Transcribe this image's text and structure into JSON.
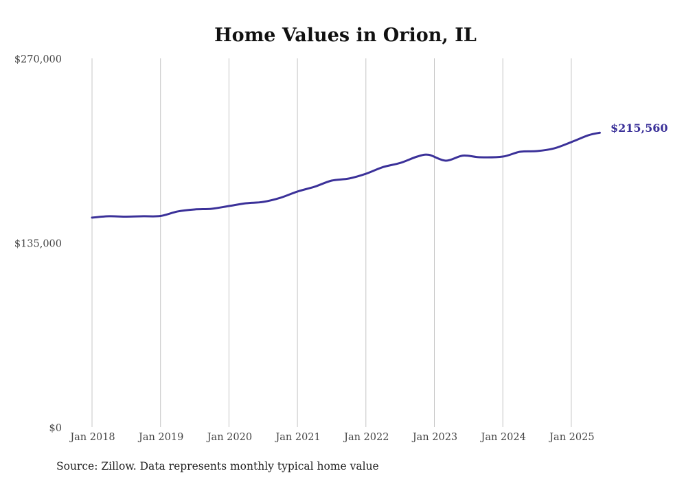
{
  "chart_data": {
    "type": "line",
    "title": "Home Values in Orion, IL",
    "xlabel": "",
    "ylabel": "",
    "ylim": [
      0,
      270000
    ],
    "y_ticks": [
      0,
      135000,
      270000
    ],
    "y_tick_labels": [
      "$0",
      "$135,000",
      "$270,000"
    ],
    "x_tick_labels": [
      "Jan 2018",
      "Jan 2019",
      "Jan 2020",
      "Jan 2021",
      "Jan 2022",
      "Jan 2023",
      "Jan 2024",
      "Jan 2025"
    ],
    "grid": "vertical",
    "line_color": "#3b3199",
    "series": [
      {
        "name": "Typical home value",
        "x": [
          "2018-01",
          "2018-04",
          "2018-07",
          "2018-10",
          "2019-01",
          "2019-04",
          "2019-07",
          "2019-10",
          "2020-01",
          "2020-04",
          "2020-07",
          "2020-10",
          "2021-01",
          "2021-04",
          "2021-07",
          "2021-10",
          "2022-01",
          "2022-04",
          "2022-07",
          "2022-10",
          "2022-12",
          "2023-03",
          "2023-06",
          "2023-09",
          "2024-01",
          "2024-04",
          "2024-07",
          "2024-10",
          "2025-01",
          "2025-04",
          "2025-06"
        ],
        "values": [
          153400,
          154400,
          154100,
          154400,
          154600,
          157900,
          159400,
          159900,
          161900,
          163900,
          164900,
          167900,
          172500,
          176000,
          180500,
          182000,
          185500,
          190400,
          193400,
          198100,
          199400,
          195100,
          198800,
          197600,
          198100,
          201600,
          202100,
          204100,
          208700,
          213700,
          215560
        ]
      }
    ],
    "end_label": "$215,560",
    "source": "Source: Zillow. Data represents monthly typical home value"
  }
}
